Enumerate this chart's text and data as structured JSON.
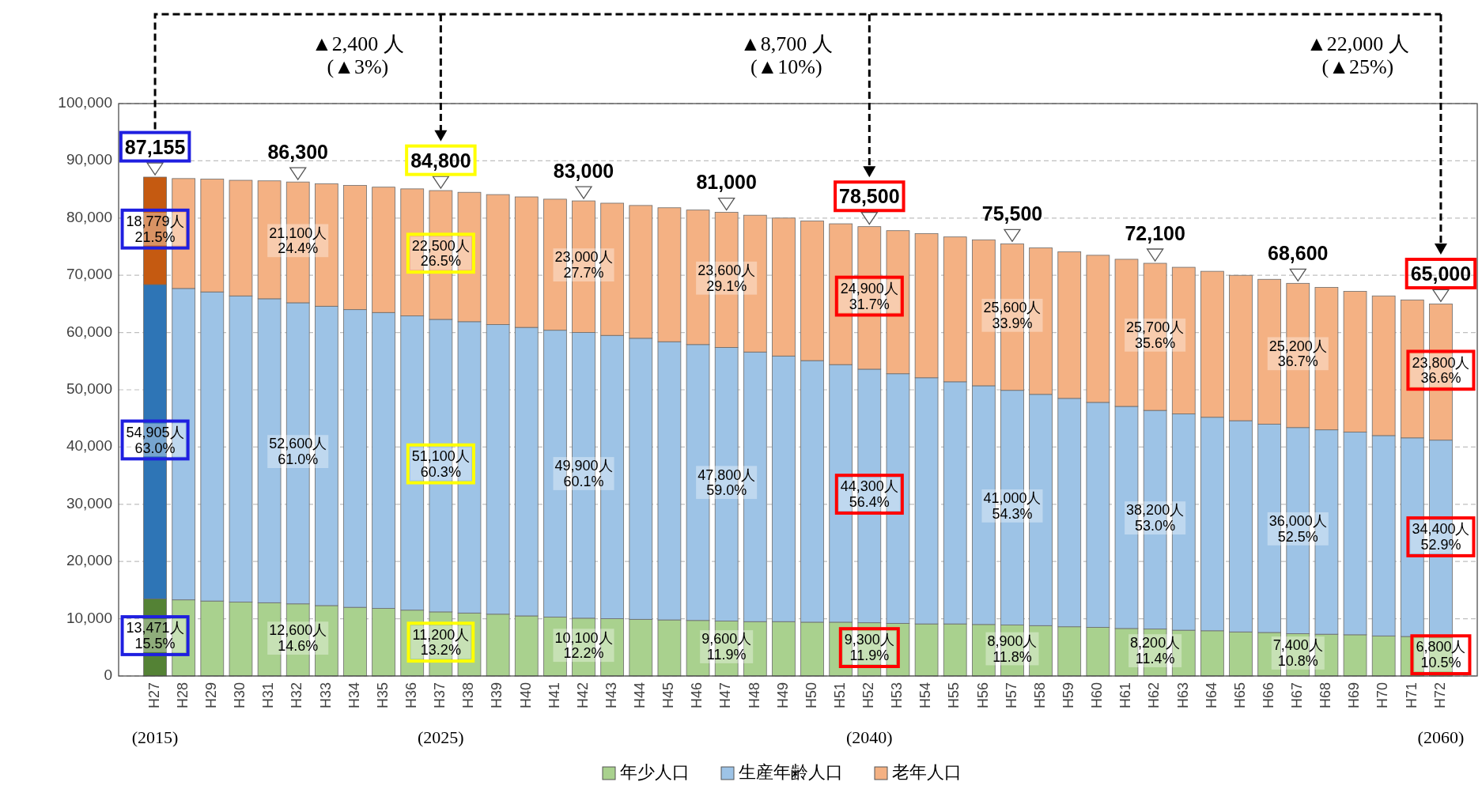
{
  "chart_data": {
    "type": "bar",
    "stacked": true,
    "categories": [
      "H27",
      "H28",
      "H29",
      "H30",
      "H31",
      "H32",
      "H33",
      "H34",
      "H35",
      "H36",
      "H37",
      "H38",
      "H39",
      "H40",
      "H41",
      "H42",
      "H43",
      "H44",
      "H45",
      "H46",
      "H47",
      "H48",
      "H49",
      "H50",
      "H51",
      "H52",
      "H53",
      "H54",
      "H55",
      "H56",
      "H57",
      "H58",
      "H59",
      "H60",
      "H61",
      "H62",
      "H63",
      "H64",
      "H65",
      "H66",
      "H67",
      "H68",
      "H69",
      "H70",
      "H71",
      "H72"
    ],
    "ylim": [
      0,
      100000
    ],
    "yticks": [
      0,
      {
        "value": 10000,
        "label": "10,000"
      },
      {
        "value": 20000,
        "label": "20,000"
      },
      {
        "value": 30000,
        "label": "30,000"
      },
      {
        "value": 40000,
        "label": "40,000"
      },
      {
        "value": 50000,
        "label": "50,000"
      },
      {
        "value": 60000,
        "label": "60,000"
      },
      {
        "value": 70000,
        "label": "70,000"
      },
      {
        "value": 80000,
        "label": "80,000"
      },
      {
        "value": 90000,
        "label": "90,000"
      },
      {
        "value": 100000,
        "label": "100,000"
      }
    ],
    "grid": "y",
    "legend": "bottom",
    "series": [
      {
        "name": "年少人口",
        "color": "#a9d18e",
        "colors": [
          "#548235",
          "#a9d18e",
          "#a9d18e",
          "#a9d18e",
          "#a9d18e",
          "#a9d18e",
          "#a9d18e",
          "#a9d18e",
          "#a9d18e",
          "#a9d18e",
          "#a9d18e",
          "#a9d18e",
          "#a9d18e",
          "#a9d18e",
          "#a9d18e",
          "#a9d18e",
          "#a9d18e",
          "#a9d18e",
          "#a9d18e",
          "#a9d18e",
          "#a9d18e",
          "#a9d18e",
          "#a9d18e",
          "#a9d18e",
          "#a9d18e",
          "#a9d18e",
          "#a9d18e",
          "#a9d18e",
          "#a9d18e",
          "#a9d18e",
          "#a9d18e",
          "#a9d18e",
          "#a9d18e",
          "#a9d18e",
          "#a9d18e",
          "#a9d18e",
          "#a9d18e",
          "#a9d18e",
          "#a9d18e",
          "#a9d18e",
          "#a9d18e",
          "#a9d18e",
          "#a9d18e",
          "#a9d18e",
          "#a9d18e",
          "#a9d18e"
        ],
        "values": [
          13471,
          13300,
          13100,
          12900,
          12800,
          12600,
          12300,
          12000,
          11800,
          11500,
          11200,
          11000,
          10800,
          10500,
          10300,
          10100,
          10000,
          9900,
          9800,
          9700,
          9600,
          9500,
          9500,
          9400,
          9400,
          9300,
          9200,
          9100,
          9100,
          9000,
          8900,
          8800,
          8600,
          8500,
          8300,
          8200,
          8000,
          7900,
          7700,
          7600,
          7400,
          7300,
          7200,
          7000,
          6900,
          6800
        ],
        "value_labels": [
          "13,471人\n15.5%",
          null,
          null,
          null,
          null,
          "12,600人\n14.6%",
          null,
          null,
          null,
          null,
          "11,200人\n13.2%",
          null,
          null,
          null,
          null,
          "10,100人\n12.2%",
          null,
          null,
          null,
          null,
          "9,600人\n11.9%",
          null,
          null,
          null,
          null,
          "9,300人\n11.9%",
          null,
          null,
          null,
          null,
          "8,900人\n11.8%",
          null,
          null,
          null,
          null,
          "8,200人\n11.4%",
          null,
          null,
          null,
          null,
          "7,400人\n10.8%",
          null,
          null,
          null,
          null,
          "6,800人\n10.5%"
        ]
      },
      {
        "name": "生産年齢人口",
        "color": "#9dc3e6",
        "colors": [
          "#2e75b6",
          "#9dc3e6",
          "#9dc3e6",
          "#9dc3e6",
          "#9dc3e6",
          "#9dc3e6",
          "#9dc3e6",
          "#9dc3e6",
          "#9dc3e6",
          "#9dc3e6",
          "#9dc3e6",
          "#9dc3e6",
          "#9dc3e6",
          "#9dc3e6",
          "#9dc3e6",
          "#9dc3e6",
          "#9dc3e6",
          "#9dc3e6",
          "#9dc3e6",
          "#9dc3e6",
          "#9dc3e6",
          "#9dc3e6",
          "#9dc3e6",
          "#9dc3e6",
          "#9dc3e6",
          "#9dc3e6",
          "#9dc3e6",
          "#9dc3e6",
          "#9dc3e6",
          "#9dc3e6",
          "#9dc3e6",
          "#9dc3e6",
          "#9dc3e6",
          "#9dc3e6",
          "#9dc3e6",
          "#9dc3e6",
          "#9dc3e6",
          "#9dc3e6",
          "#9dc3e6",
          "#9dc3e6",
          "#9dc3e6",
          "#9dc3e6",
          "#9dc3e6",
          "#9dc3e6",
          "#9dc3e6",
          "#9dc3e6"
        ],
        "values": [
          54905,
          54400,
          54000,
          53500,
          53100,
          52600,
          52300,
          52000,
          51700,
          51400,
          51100,
          50900,
          50600,
          50400,
          50100,
          49900,
          49500,
          49100,
          48600,
          48200,
          47800,
          47100,
          46400,
          45700,
          45000,
          44300,
          43600,
          43000,
          42300,
          41700,
          41000,
          40400,
          39900,
          39300,
          38800,
          38200,
          37800,
          37300,
          36900,
          36400,
          36000,
          35700,
          35400,
          35000,
          34700,
          34400
        ],
        "value_labels": [
          "54,905人\n63.0%",
          null,
          null,
          null,
          null,
          "52,600人\n61.0%",
          null,
          null,
          null,
          null,
          "51,100人\n60.3%",
          null,
          null,
          null,
          null,
          "49,900人\n60.1%",
          null,
          null,
          null,
          null,
          "47,800人\n59.0%",
          null,
          null,
          null,
          null,
          "44,300人\n56.4%",
          null,
          null,
          null,
          null,
          "41,000人\n54.3%",
          null,
          null,
          null,
          null,
          "38,200人\n53.0%",
          null,
          null,
          null,
          null,
          "36,000人\n52.5%",
          null,
          null,
          null,
          null,
          "34,400人\n52.9%"
        ]
      },
      {
        "name": "老年人口",
        "color": "#f4b183",
        "colors": [
          "#c55a11",
          "#f4b183",
          "#f4b183",
          "#f4b183",
          "#f4b183",
          "#f4b183",
          "#f4b183",
          "#f4b183",
          "#f4b183",
          "#f4b183",
          "#f4b183",
          "#f4b183",
          "#f4b183",
          "#f4b183",
          "#f4b183",
          "#f4b183",
          "#f4b183",
          "#f4b183",
          "#f4b183",
          "#f4b183",
          "#f4b183",
          "#f4b183",
          "#f4b183",
          "#f4b183",
          "#f4b183",
          "#f4b183",
          "#f4b183",
          "#f4b183",
          "#f4b183",
          "#f4b183",
          "#f4b183",
          "#f4b183",
          "#f4b183",
          "#f4b183",
          "#f4b183",
          "#f4b183",
          "#f4b183",
          "#f4b183",
          "#f4b183",
          "#f4b183",
          "#f4b183",
          "#f4b183",
          "#f4b183",
          "#f4b183",
          "#f4b183",
          "#f4b183"
        ],
        "values": [
          18779,
          19200,
          19700,
          20200,
          20600,
          21100,
          21400,
          21700,
          21900,
          22200,
          22500,
          22600,
          22700,
          22800,
          22900,
          23000,
          23100,
          23200,
          23400,
          23500,
          23600,
          23900,
          24100,
          24400,
          24600,
          24900,
          25000,
          25200,
          25300,
          25500,
          25600,
          25600,
          25600,
          25700,
          25700,
          25700,
          25600,
          25500,
          25400,
          25300,
          25200,
          24900,
          24600,
          24400,
          24100,
          23800
        ],
        "value_labels": [
          "18,779人\n21.5%",
          null,
          null,
          null,
          null,
          "21,100人\n24.4%",
          null,
          null,
          null,
          null,
          "22,500人\n26.5%",
          null,
          null,
          null,
          null,
          "23,000人\n27.7%",
          null,
          null,
          null,
          null,
          "23,600人\n29.1%",
          null,
          null,
          null,
          null,
          "24,900人\n31.7%",
          null,
          null,
          null,
          null,
          "25,600人\n33.9%",
          null,
          null,
          null,
          null,
          "25,700人\n35.6%",
          null,
          null,
          null,
          null,
          "25,200人\n36.7%",
          null,
          null,
          null,
          null,
          "23,800人\n36.6%"
        ]
      }
    ],
    "totals": [
      "87,155",
      null,
      null,
      null,
      null,
      "86,300",
      null,
      null,
      null,
      null,
      "84,800",
      null,
      null,
      null,
      null,
      "83,000",
      null,
      null,
      null,
      null,
      "81,000",
      null,
      null,
      null,
      null,
      "78,500",
      null,
      null,
      null,
      null,
      "75,500",
      null,
      null,
      null,
      null,
      "72,100",
      null,
      null,
      null,
      null,
      "68,600",
      null,
      null,
      null,
      null,
      "65,000"
    ],
    "annotations": [
      "▲2,400 人\n(▲3%)",
      "▲8,700 人\n(▲10%)",
      "▲22,000 人\n(▲25%)",
      "(2015)",
      "(2025)",
      "(2040)",
      "(2060)"
    ]
  }
}
